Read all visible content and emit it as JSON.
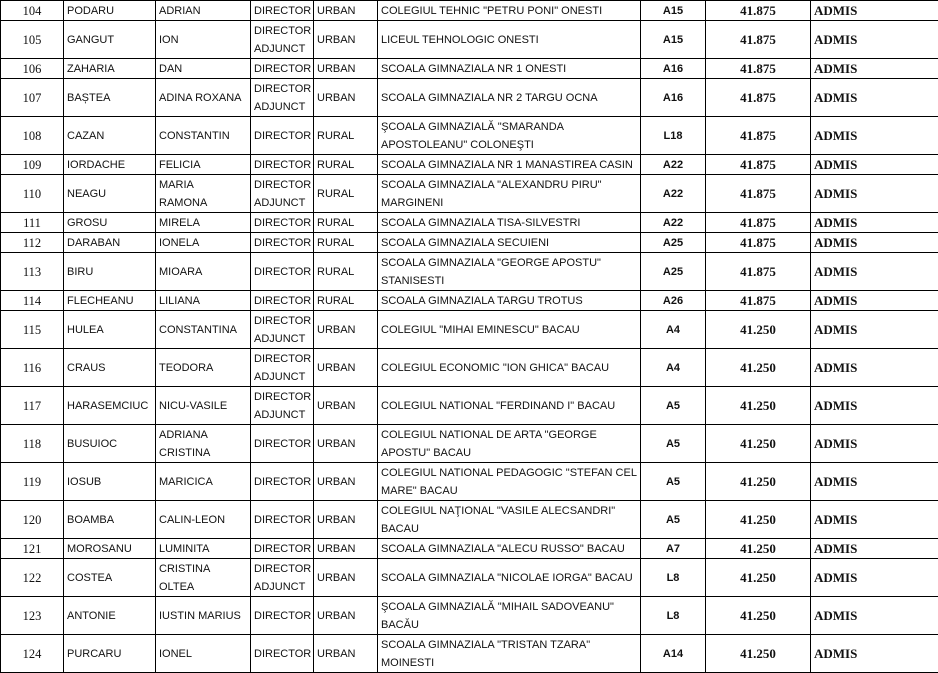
{
  "rows": [
    {
      "nr": "104",
      "last": "PODARU",
      "first": "ADRIAN",
      "role": "DIRECTOR",
      "env": "URBAN",
      "school": "COLEGIUL TEHNIC \"PETRU PONI\" ONESTI",
      "code": "A15",
      "score": "41.875",
      "result": "ADMIS"
    },
    {
      "nr": "105",
      "last": "GANGUT",
      "first": "ION",
      "role": "DIRECTOR\nADJUNCT",
      "env": "URBAN",
      "school": "LICEUL TEHNOLOGIC ONESTI",
      "code": "A15",
      "score": "41.875",
      "result": "ADMIS"
    },
    {
      "nr": "106",
      "last": "ZAHARIA",
      "first": "DAN",
      "role": "DIRECTOR",
      "env": "URBAN",
      "school": "SCOALA GIMNAZIALA NR 1 ONESTI",
      "code": "A16",
      "score": "41.875",
      "result": "ADMIS"
    },
    {
      "nr": "107",
      "last": "BAȘTEA",
      "first": "ADINA ROXANA",
      "role": "DIRECTOR\nADJUNCT",
      "env": "URBAN",
      "school": "SCOALA GIMNAZIALA NR 2 TARGU OCNA",
      "code": "A16",
      "score": "41.875",
      "result": "ADMIS"
    },
    {
      "nr": "108",
      "last": "CAZAN",
      "first": "CONSTANTIN",
      "role": "DIRECTOR",
      "env": "RURAL",
      "school": "ŞCOALA GIMNAZIALĂ \"SMARANDA\nAPOSTOLEANU\" COLONEŞTI",
      "code": "L18",
      "score": "41.875",
      "result": "ADMIS"
    },
    {
      "nr": "109",
      "last": "IORDACHE",
      "first": "FELICIA",
      "role": "DIRECTOR",
      "env": "RURAL",
      "school": "SCOALA GIMNAZIALA NR 1 MANASTIREA CASIN",
      "code": "A22",
      "score": "41.875",
      "result": "ADMIS"
    },
    {
      "nr": "110",
      "last": "NEAGU",
      "first": "MARIA\nRAMONA",
      "role": "DIRECTOR\nADJUNCT",
      "env": "RURAL",
      "school": "SCOALA GIMNAZIALA \"ALEXANDRU PIRU\"\nMARGINENI",
      "code": "A22",
      "score": "41.875",
      "result": "ADMIS"
    },
    {
      "nr": "111",
      "last": "GROSU",
      "first": "MIRELA",
      "role": "DIRECTOR",
      "env": "RURAL",
      "school": "SCOALA GIMNAZIALA TISA-SILVESTRI",
      "code": "A22",
      "score": "41.875",
      "result": "ADMIS"
    },
    {
      "nr": "112",
      "last": "DARABAN",
      "first": "IONELA",
      "role": "DIRECTOR",
      "env": "RURAL",
      "school": "SCOALA GIMNAZIALA SECUIENI",
      "code": "A25",
      "score": "41.875",
      "result": "ADMIS"
    },
    {
      "nr": "113",
      "last": "BIRU",
      "first": "MIOARA",
      "role": "DIRECTOR",
      "env": "RURAL",
      "school": "SCOALA GIMNAZIALA \"GEORGE APOSTU\"\nSTANISESTI",
      "code": "A25",
      "score": "41.875",
      "result": "ADMIS"
    },
    {
      "nr": "114",
      "last": "FLECHEANU",
      "first": "LILIANA",
      "role": "DIRECTOR",
      "env": "RURAL",
      "school": "SCOALA GIMNAZIALA TARGU TROTUS",
      "code": "A26",
      "score": "41.875",
      "result": "ADMIS"
    },
    {
      "nr": "115",
      "last": "HULEA",
      "first": "CONSTANTINA",
      "role": "DIRECTOR\nADJUNCT",
      "env": "URBAN",
      "school": "COLEGIUL \"MIHAI EMINESCU\" BACAU",
      "code": "A4",
      "score": "41.250",
      "result": "ADMIS"
    },
    {
      "nr": "116",
      "last": "CRAUS",
      "first": "TEODORA",
      "role": "DIRECTOR\nADJUNCT",
      "env": "URBAN",
      "school": "COLEGIUL ECONOMIC \"ION GHICA\" BACAU",
      "code": "A4",
      "score": "41.250",
      "result": "ADMIS"
    },
    {
      "nr": "117",
      "last": "HARASEMCIUC",
      "first": "NICU-VASILE",
      "role": "DIRECTOR\nADJUNCT",
      "env": "URBAN",
      "school": "COLEGIUL NATIONAL \"FERDINAND I\" BACAU",
      "code": "A5",
      "score": "41.250",
      "result": "ADMIS"
    },
    {
      "nr": "118",
      "last": "BUSUIOC",
      "first": "ADRIANA\nCRISTINA",
      "role": "DIRECTOR",
      "env": "URBAN",
      "school": "COLEGIUL NATIONAL DE ARTA \"GEORGE\nAPOSTU\" BACAU",
      "code": "A5",
      "score": "41.250",
      "result": "ADMIS"
    },
    {
      "nr": "119",
      "last": "IOSUB",
      "first": "MARICICA",
      "role": "DIRECTOR",
      "env": "URBAN",
      "school": "COLEGIUL NATIONAL PEDAGOGIC \"STEFAN CEL\nMARE\" BACAU",
      "code": "A5",
      "score": "41.250",
      "result": "ADMIS"
    },
    {
      "nr": "120",
      "last": "BOAMBA",
      "first": "CALIN-LEON",
      "role": "DIRECTOR",
      "env": "URBAN",
      "school": "COLEGIUL NAŢIONAL \"VASILE ALECSANDRI\"\nBACAU",
      "code": "A5",
      "score": "41.250",
      "result": "ADMIS"
    },
    {
      "nr": "121",
      "last": "MOROSANU",
      "first": "LUMINITA",
      "role": "DIRECTOR",
      "env": "URBAN",
      "school": "SCOALA GIMNAZIALA \"ALECU RUSSO\" BACAU",
      "code": "A7",
      "score": "41.250",
      "result": "ADMIS"
    },
    {
      "nr": "122",
      "last": "COSTEA",
      "first": "CRISTINA\nOLTEA",
      "role": "DIRECTOR\nADJUNCT",
      "env": "URBAN",
      "school": "SCOALA GIMNAZIALA \"NICOLAE IORGA\" BACAU",
      "code": "L8",
      "score": "41.250",
      "result": "ADMIS"
    },
    {
      "nr": "123",
      "last": "ANTONIE",
      "first": "IUSTIN MARIUS",
      "role": "DIRECTOR",
      "env": "URBAN",
      "school": "ŞCOALA GIMNAZIALĂ \"MIHAIL SADOVEANU\"\nBACĂU",
      "code": "L8",
      "score": "41.250",
      "result": "ADMIS"
    },
    {
      "nr": "124",
      "last": "PURCARU",
      "first": "IONEL",
      "role": "DIRECTOR",
      "env": "URBAN",
      "school": "SCOALA GIMNAZIALA \"TRISTAN TZARA\"\nMOINESTI",
      "code": "A14",
      "score": "41.250",
      "result": "ADMIS"
    }
  ]
}
